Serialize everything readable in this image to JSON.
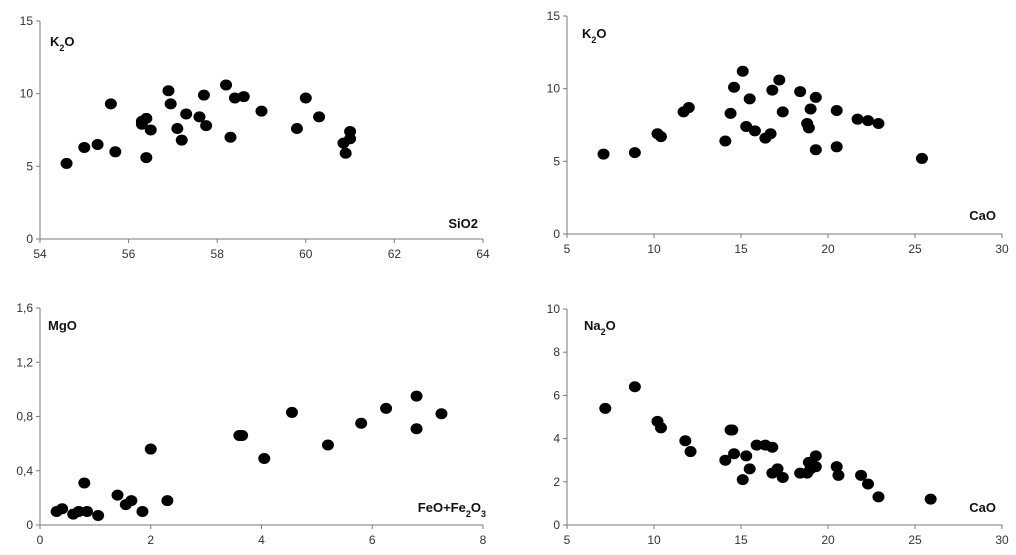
{
  "chart_data": [
    {
      "type": "scatter",
      "ylabel": "K2O",
      "xlabel": "SiO2",
      "ylabel_parts": [
        [
          "K",
          ""
        ],
        [
          "2",
          "sub"
        ],
        [
          "O",
          ""
        ]
      ],
      "xlabel_parts": [
        [
          "SiO2",
          ""
        ]
      ],
      "xlim": [
        54,
        64
      ],
      "ylim": [
        0,
        15
      ],
      "xticks": [
        54,
        56,
        58,
        60,
        62,
        64
      ],
      "yticks": [
        0,
        5,
        10,
        15
      ],
      "xtick_labels": [
        "54",
        "56",
        "58",
        "60",
        "62",
        "64"
      ],
      "ytick_labels": [
        "0",
        "5",
        "10",
        "15"
      ],
      "points": [
        [
          54.6,
          5.2
        ],
        [
          55.0,
          6.3
        ],
        [
          55.3,
          6.5
        ],
        [
          55.6,
          9.3
        ],
        [
          55.7,
          6.0
        ],
        [
          56.3,
          8.1
        ],
        [
          56.3,
          7.9
        ],
        [
          56.4,
          8.3
        ],
        [
          56.4,
          5.6
        ],
        [
          56.5,
          7.5
        ],
        [
          56.9,
          10.2
        ],
        [
          56.95,
          9.3
        ],
        [
          57.1,
          7.6
        ],
        [
          57.2,
          6.8
        ],
        [
          57.3,
          8.6
        ],
        [
          57.6,
          8.4
        ],
        [
          57.7,
          9.9
        ],
        [
          57.75,
          7.8
        ],
        [
          58.2,
          10.6
        ],
        [
          58.3,
          7.0
        ],
        [
          58.4,
          9.7
        ],
        [
          58.6,
          9.8
        ],
        [
          59.0,
          8.8
        ],
        [
          59.8,
          7.6
        ],
        [
          60.0,
          9.7
        ],
        [
          60.3,
          8.4
        ],
        [
          60.85,
          6.6
        ],
        [
          60.9,
          5.9
        ],
        [
          61.0,
          7.4
        ],
        [
          61.0,
          6.9
        ]
      ]
    },
    {
      "type": "scatter",
      "ylabel": "K2O",
      "xlabel": "CaO",
      "ylabel_parts": [
        [
          "K",
          ""
        ],
        [
          "2",
          "sub"
        ],
        [
          "O",
          ""
        ]
      ],
      "xlabel_parts": [
        [
          "CaO",
          ""
        ]
      ],
      "xlim": [
        5,
        30
      ],
      "ylim": [
        0,
        15
      ],
      "xticks": [
        5,
        10,
        15,
        20,
        25,
        30
      ],
      "yticks": [
        0,
        5,
        10,
        15
      ],
      "xtick_labels": [
        "5",
        "10",
        "15",
        "20",
        "25",
        "30"
      ],
      "ytick_labels": [
        "0",
        "5",
        "10",
        "15"
      ],
      "points": [
        [
          7.1,
          5.5
        ],
        [
          8.9,
          5.6
        ],
        [
          10.2,
          6.9
        ],
        [
          10.4,
          6.7
        ],
        [
          11.7,
          8.4
        ],
        [
          12.0,
          8.7
        ],
        [
          14.1,
          6.4
        ],
        [
          14.4,
          8.3
        ],
        [
          14.6,
          10.1
        ],
        [
          15.1,
          11.2
        ],
        [
          15.3,
          7.4
        ],
        [
          15.5,
          9.3
        ],
        [
          15.8,
          7.1
        ],
        [
          16.4,
          6.6
        ],
        [
          16.7,
          6.9
        ],
        [
          16.8,
          9.9
        ],
        [
          17.2,
          10.6
        ],
        [
          17.4,
          8.4
        ],
        [
          18.4,
          9.8
        ],
        [
          18.8,
          7.6
        ],
        [
          18.9,
          7.3
        ],
        [
          19.0,
          8.6
        ],
        [
          19.3,
          9.4
        ],
        [
          19.3,
          5.8
        ],
        [
          20.5,
          6.0
        ],
        [
          20.5,
          8.5
        ],
        [
          21.7,
          7.9
        ],
        [
          22.3,
          7.8
        ],
        [
          22.9,
          7.6
        ],
        [
          25.4,
          5.2
        ]
      ]
    },
    {
      "type": "scatter",
      "ylabel": "MgO",
      "xlabel": "FeO+Fe2O3",
      "ylabel_parts": [
        [
          "MgO",
          ""
        ]
      ],
      "xlabel_parts": [
        [
          "FeO+Fe",
          ""
        ],
        [
          "2",
          "sub"
        ],
        [
          "O",
          ""
        ],
        [
          "3",
          "sub"
        ]
      ],
      "xlim": [
        0,
        8
      ],
      "ylim": [
        0,
        1.6
      ],
      "xticks": [
        0,
        2,
        4,
        6,
        8
      ],
      "yticks": [
        0,
        0.4,
        0.8,
        1.2,
        1.6
      ],
      "xtick_labels": [
        "0",
        "2",
        "4",
        "6",
        "8"
      ],
      "ytick_labels": [
        "0",
        "0,4",
        "0,8",
        "1,2",
        "1,6"
      ],
      "points": [
        [
          0.3,
          0.1
        ],
        [
          0.4,
          0.12
        ],
        [
          0.6,
          0.08
        ],
        [
          0.7,
          0.1
        ],
        [
          0.8,
          0.31
        ],
        [
          0.85,
          0.1
        ],
        [
          1.05,
          0.07
        ],
        [
          1.4,
          0.22
        ],
        [
          1.55,
          0.15
        ],
        [
          1.65,
          0.18
        ],
        [
          1.85,
          0.1
        ],
        [
          2.0,
          0.56
        ],
        [
          2.3,
          0.18
        ],
        [
          3.6,
          0.66
        ],
        [
          3.65,
          0.66
        ],
        [
          4.05,
          0.49
        ],
        [
          4.55,
          0.83
        ],
        [
          5.2,
          0.59
        ],
        [
          5.8,
          0.75
        ],
        [
          6.25,
          0.86
        ],
        [
          6.8,
          0.95
        ],
        [
          6.8,
          0.71
        ],
        [
          7.25,
          0.82
        ]
      ]
    },
    {
      "type": "scatter",
      "ylabel": "Na2O",
      "xlabel": "CaO",
      "ylabel_parts": [
        [
          "Na",
          ""
        ],
        [
          "2",
          "sub"
        ],
        [
          "O",
          ""
        ]
      ],
      "xlabel_parts": [
        [
          "CaO",
          ""
        ]
      ],
      "xlim": [
        5,
        30
      ],
      "ylim": [
        0,
        10
      ],
      "xticks": [
        5,
        10,
        15,
        20,
        25,
        30
      ],
      "yticks": [
        0,
        2,
        4,
        6,
        8,
        10
      ],
      "xtick_labels": [
        "5",
        "10",
        "15",
        "20",
        "25",
        "30"
      ],
      "ytick_labels": [
        "0",
        "2",
        "4",
        "6",
        "8",
        "10"
      ],
      "points": [
        [
          7.2,
          5.4
        ],
        [
          8.9,
          6.4
        ],
        [
          10.2,
          4.8
        ],
        [
          10.4,
          4.5
        ],
        [
          11.8,
          3.9
        ],
        [
          12.1,
          3.4
        ],
        [
          14.1,
          3.0
        ],
        [
          14.4,
          4.4
        ],
        [
          14.5,
          4.4
        ],
        [
          14.6,
          3.3
        ],
        [
          15.1,
          2.1
        ],
        [
          15.3,
          3.2
        ],
        [
          15.5,
          2.6
        ],
        [
          15.9,
          3.7
        ],
        [
          16.4,
          3.7
        ],
        [
          16.8,
          3.6
        ],
        [
          16.8,
          2.4
        ],
        [
          17.1,
          2.6
        ],
        [
          17.4,
          2.2
        ],
        [
          18.4,
          2.4
        ],
        [
          18.8,
          2.4
        ],
        [
          18.9,
          2.9
        ],
        [
          19.0,
          2.6
        ],
        [
          19.3,
          2.7
        ],
        [
          19.3,
          3.2
        ],
        [
          20.5,
          2.7
        ],
        [
          20.6,
          2.3
        ],
        [
          21.9,
          2.3
        ],
        [
          22.3,
          1.9
        ],
        [
          22.9,
          1.3
        ],
        [
          25.9,
          1.2
        ]
      ]
    }
  ]
}
